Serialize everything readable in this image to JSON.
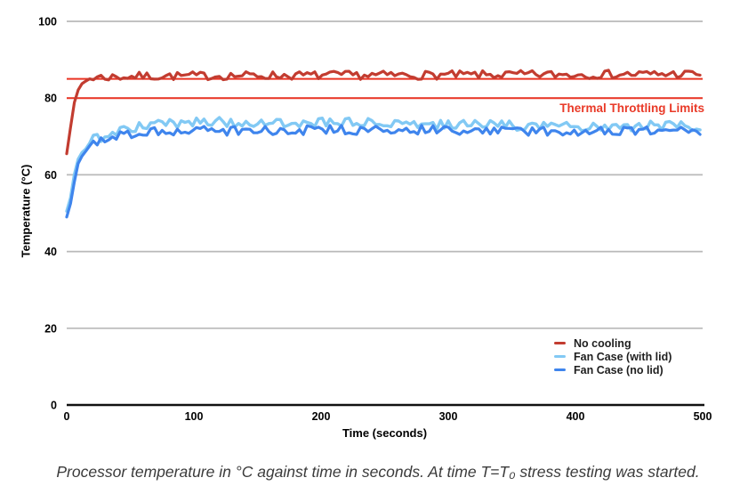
{
  "figure": {
    "background": "#ffffff"
  },
  "chart_data": {
    "type": "line",
    "title": "",
    "xlabel": "Time (seconds)",
    "ylabel": "Temperature (°C)",
    "xlim": [
      0,
      500
    ],
    "ylim": [
      0,
      100
    ],
    "x_ticks": [
      0,
      100,
      200,
      300,
      400,
      500
    ],
    "y_ticks": [
      0,
      20,
      40,
      60,
      80,
      100
    ],
    "grid": {
      "horizontal": true,
      "vertical": false,
      "color": "#b9b9b9"
    },
    "axis_color": "#111111",
    "tick_label_color": "#000000",
    "legend": {
      "position": "inside-bottom-right",
      "text_color": "#1f1f1f"
    },
    "series": [
      {
        "name": "No cooling",
        "color": "#c23c30",
        "noise_amplitude_c": 1.1,
        "steady_temp_c": 86,
        "trend_points": [
          [
            0,
            65.5
          ],
          [
            2,
            70
          ],
          [
            4,
            75
          ],
          [
            6,
            78.5
          ],
          [
            8,
            81
          ],
          [
            10,
            82.8
          ],
          [
            13,
            84.2
          ],
          [
            17,
            85
          ],
          [
            22,
            85.4
          ],
          [
            60,
            85.7
          ],
          [
            150,
            85.9
          ],
          [
            300,
            86.0
          ],
          [
            420,
            86.2
          ],
          [
            500,
            86.3
          ]
        ]
      },
      {
        "name": "Fan Case (with lid)",
        "color": "#82c9f4",
        "noise_amplitude_c": 1.3,
        "steady_temp_c": 73,
        "trend_points": [
          [
            0,
            50.5
          ],
          [
            2,
            52
          ],
          [
            4,
            56
          ],
          [
            6,
            60
          ],
          [
            8,
            62.8
          ],
          [
            10,
            64.8
          ],
          [
            13,
            66.6
          ],
          [
            17,
            68
          ],
          [
            22,
            69.3
          ],
          [
            30,
            70.3
          ],
          [
            45,
            71.7
          ],
          [
            60,
            72.6
          ],
          [
            90,
            73.6
          ],
          [
            150,
            73.8
          ],
          [
            220,
            73.6
          ],
          [
            300,
            73.0
          ],
          [
            400,
            72.7
          ],
          [
            500,
            72.8
          ]
        ]
      },
      {
        "name": "Fan Case (no lid)",
        "color": "#3f85ed",
        "noise_amplitude_c": 1.2,
        "steady_temp_c": 71.5,
        "trend_points": [
          [
            0,
            49
          ],
          [
            2,
            50.5
          ],
          [
            4,
            54.5
          ],
          [
            6,
            58.5
          ],
          [
            8,
            61.5
          ],
          [
            10,
            63.5
          ],
          [
            13,
            65.5
          ],
          [
            17,
            67
          ],
          [
            22,
            68.3
          ],
          [
            30,
            69.3
          ],
          [
            45,
            70.4
          ],
          [
            60,
            71.0
          ],
          [
            90,
            71.4
          ],
          [
            150,
            71.5
          ],
          [
            250,
            71.8
          ],
          [
            350,
            71.5
          ],
          [
            500,
            71.4
          ]
        ]
      }
    ],
    "limit_lines": {
      "label": "Thermal Throttling Limits",
      "color": "#ea3323",
      "label_color": "#e93a28",
      "values_c": [
        80,
        85
      ]
    }
  },
  "caption": {
    "text": "Processor temperature in °C against time in seconds. At time T=T₀ stress testing was started."
  }
}
